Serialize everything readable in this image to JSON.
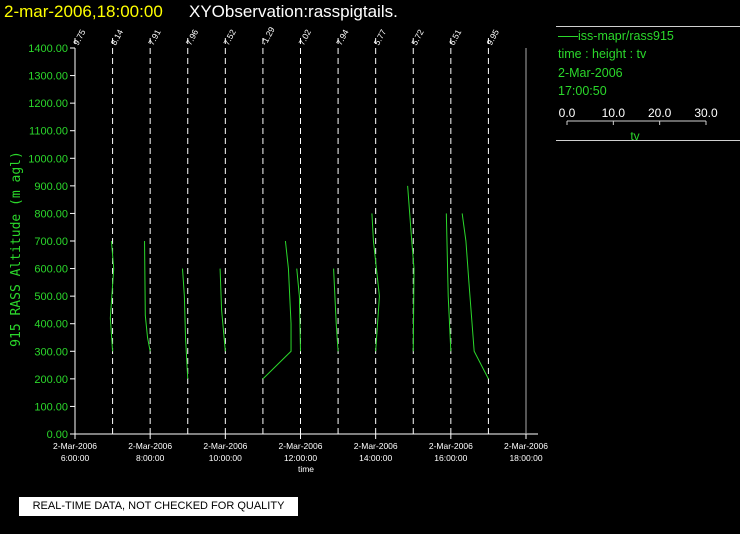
{
  "header": {
    "date_label": "2-mar-2006,18:00:00",
    "title": "XYObservation:rasspigtails."
  },
  "legend": {
    "line1": "iss-mapr/rass915",
    "line2": "time : height : tv",
    "line3": "2-Mar-2006",
    "line4": "17:00:50",
    "scale_ticks": [
      "0.0",
      "10.0",
      "20.0",
      "30.0"
    ],
    "scale_label": "tv"
  },
  "footer": {
    "disclaimer": "REAL-TIME DATA, NOT CHECKED FOR QUALITY"
  },
  "colors": {
    "series": "#2bd82b",
    "title_date": "#ffff00",
    "text": "#ffffff",
    "background": "#000000"
  },
  "chart_data": {
    "type": "line",
    "ylabel": "915 RASS Altitude (m agl)",
    "xlabel": "time",
    "ylim": [
      0,
      1400
    ],
    "yticks": [
      "0.00",
      "100.00",
      "200.00",
      "300.00",
      "400.00",
      "500.00",
      "600.00",
      "700.00",
      "800.00",
      "900.00",
      "1000.00",
      "1100.00",
      "1200.00",
      "1300.00",
      "1400.00"
    ],
    "xlim": [
      6,
      18
    ],
    "xticks": [
      {
        "hour": 6,
        "date": "2-Mar-2006",
        "time": "6:00:00"
      },
      {
        "hour": 8,
        "date": "2-Mar-2006",
        "time": "8:00:00"
      },
      {
        "hour": 10,
        "date": "2-Mar-2006",
        "time": "10:00:00"
      },
      {
        "hour": 12,
        "date": "2-Mar-2006",
        "time": "12:00:00"
      },
      {
        "hour": 14,
        "date": "2-Mar-2006",
        "time": "14:00:00"
      },
      {
        "hour": 16,
        "date": "2-Mar-2006",
        "time": "16:00:00"
      },
      {
        "hour": 18,
        "date": "2-Mar-2006",
        "time": "18:00:00"
      }
    ],
    "tv_scale": {
      "range": [
        0,
        30
      ]
    },
    "profiles": [
      {
        "hour": 6.0,
        "label": "9.75",
        "points": []
      },
      {
        "hour": 7.0,
        "label": "8.14",
        "points": [
          [
            0.0,
            300
          ],
          [
            -0.6,
            420
          ],
          [
            0.3,
            600
          ],
          [
            -0.3,
            700
          ]
        ]
      },
      {
        "hour": 8.0,
        "label": "7.91",
        "points": [
          [
            0.0,
            300
          ],
          [
            -0.7,
            350
          ],
          [
            -1.3,
            430
          ],
          [
            -1.5,
            700
          ]
        ]
      },
      {
        "hour": 9.0,
        "label": "7.96",
        "points": [
          [
            0.0,
            200
          ],
          [
            -0.6,
            350
          ],
          [
            -0.9,
            500
          ],
          [
            -1.4,
            600
          ]
        ]
      },
      {
        "hour": 10.0,
        "label": "7.52",
        "points": [
          [
            0.0,
            300
          ],
          [
            -1.0,
            450
          ],
          [
            -1.4,
            600
          ]
        ]
      },
      {
        "hour": 11.0,
        "label": "-1.29",
        "points": [
          [
            0.0,
            200
          ],
          [
            7.5,
            300
          ],
          [
            7.5,
            400
          ],
          [
            6.8,
            600
          ],
          [
            6.0,
            700
          ]
        ]
      },
      {
        "hour": 12.0,
        "label": "7.02",
        "points": [
          [
            0.0,
            300
          ],
          [
            -0.3,
            500
          ],
          [
            -1.0,
            600
          ]
        ]
      },
      {
        "hour": 13.0,
        "label": "7.94",
        "points": [
          [
            0.0,
            300
          ],
          [
            -0.5,
            400
          ],
          [
            -1.2,
            600
          ]
        ]
      },
      {
        "hour": 14.0,
        "label": "5.77",
        "points": [
          [
            0.0,
            300
          ],
          [
            1.0,
            500
          ],
          [
            0.2,
            600
          ],
          [
            -0.6,
            700
          ],
          [
            -1.0,
            800
          ]
        ]
      },
      {
        "hour": 15.0,
        "label": "5.72",
        "points": [
          [
            0.0,
            300
          ],
          [
            0.2,
            600
          ],
          [
            -0.4,
            700
          ],
          [
            -1.5,
            900
          ]
        ]
      },
      {
        "hour": 16.0,
        "label": "6.51",
        "points": [
          [
            0.0,
            300
          ],
          [
            -0.7,
            500
          ],
          [
            -1.2,
            800
          ]
        ]
      },
      {
        "hour": 17.0,
        "label": "9.95",
        "points": [
          [
            0.0,
            200
          ],
          [
            -3.8,
            300
          ],
          [
            -5.2,
            550
          ],
          [
            -6.0,
            700
          ],
          [
            -7.0,
            800
          ]
        ]
      }
    ],
    "grid": false
  }
}
